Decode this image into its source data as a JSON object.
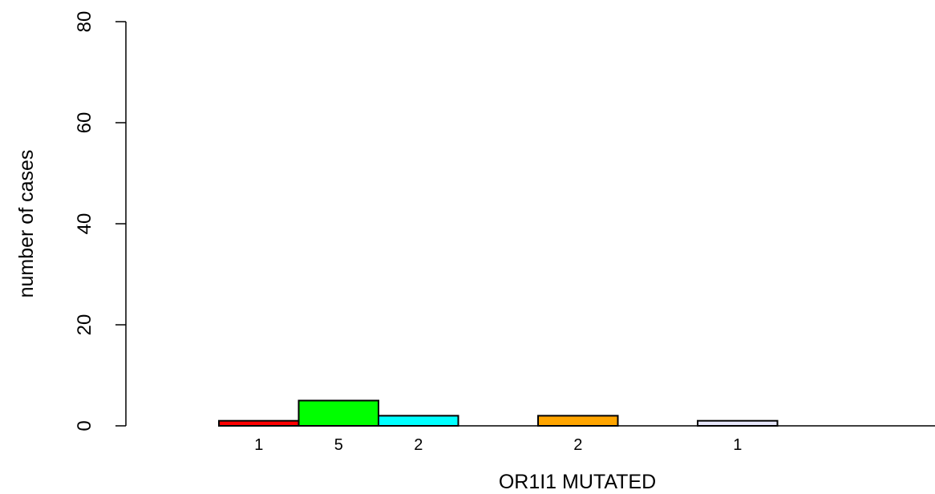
{
  "chart_data": {
    "type": "bar",
    "xlabel": "OR1I1 MUTATED",
    "ylabel": "number of cases",
    "ylim": [
      0,
      80
    ],
    "yticks": [
      0,
      20,
      40,
      60,
      80
    ],
    "grid": false,
    "bars": [
      {
        "value": 1,
        "label": "1",
        "color": "#ff0000"
      },
      {
        "value": 5,
        "label": "5",
        "color": "#00ff00"
      },
      {
        "value": 2,
        "label": "2",
        "color": "#00ffff"
      },
      {
        "value": 0,
        "label": "",
        "color": "#0000ff"
      },
      {
        "value": 2,
        "label": "2",
        "color": "#ffa500"
      },
      {
        "value": 0,
        "label": "",
        "color": "#a020f0"
      },
      {
        "value": 1,
        "label": "1",
        "color": "#e6e6fa"
      },
      {
        "value": 0,
        "label": "",
        "color": "#ffffff"
      },
      {
        "value": 0,
        "label": "",
        "color": "#ffffff"
      }
    ]
  }
}
